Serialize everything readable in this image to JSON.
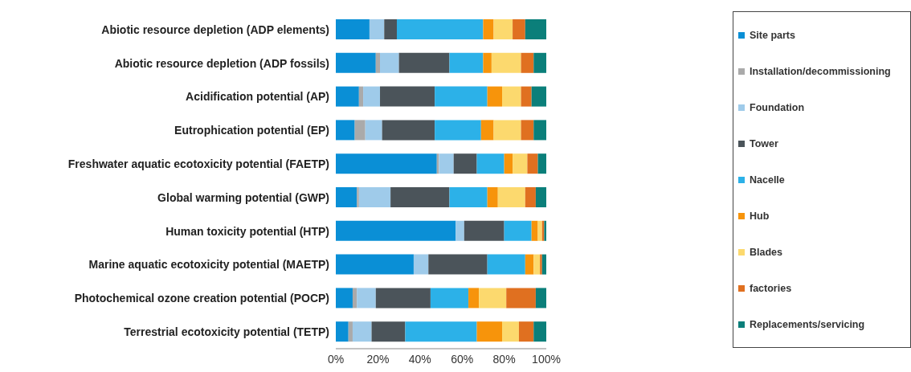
{
  "chart_data": {
    "type": "bar",
    "orientation": "horizontal",
    "stacked": true,
    "legend": "right",
    "grid": false,
    "categories": [
      "Abiotic resource depletion (ADP elements)",
      "Abiotic resource depletion (ADP fossils)",
      "Acidification potential (AP)",
      "Eutrophication potential (EP)",
      "Freshwater aquatic ecotoxicity potential (FAETP)",
      "Global warming potential (GWP)",
      "Human toxicity potential (HTP)",
      "Marine aquatic ecotoxicity potential (MAETP)",
      "Photochemical ozone creation potential (POCP)",
      "Terrestrial ecotoxicity potential (TETP)"
    ],
    "xlim": [
      0,
      100
    ],
    "xticks": [
      {
        "value": 0,
        "label": "0%"
      },
      {
        "value": 20,
        "label": "20%"
      },
      {
        "value": 40,
        "label": "40%"
      },
      {
        "value": 60,
        "label": "60%"
      },
      {
        "value": 80,
        "label": "80%"
      },
      {
        "value": 100,
        "label": "100%"
      }
    ],
    "series": [
      {
        "name": "Site parts",
        "color": "#0a8fd6",
        "values": [
          16,
          19,
          11,
          9,
          48,
          10,
          57,
          37,
          8,
          6
        ]
      },
      {
        "name": "Installation/decommissioning",
        "color": "#aaaaaa",
        "values": [
          0,
          2,
          2,
          5,
          1,
          1,
          0,
          0,
          2,
          2
        ]
      },
      {
        "name": "Foundation",
        "color": "#9fcbea",
        "values": [
          7,
          9,
          8,
          8,
          7,
          15,
          4,
          7,
          9,
          9
        ]
      },
      {
        "name": "Tower",
        "color": "#4b545a",
        "values": [
          6,
          24,
          26,
          25,
          11,
          28,
          19,
          28,
          26,
          16
        ]
      },
      {
        "name": "Nacelle",
        "color": "#2cb1e8",
        "values": [
          41,
          16,
          25,
          22,
          13,
          18,
          13,
          18,
          18,
          34
        ]
      },
      {
        "name": "Hub",
        "color": "#f7940b",
        "values": [
          5,
          4,
          7,
          6,
          4,
          5,
          3,
          4,
          5,
          12
        ]
      },
      {
        "name": "Blades",
        "color": "#fcd96e",
        "values": [
          9,
          14,
          9,
          13,
          7,
          13,
          2,
          3,
          13,
          8
        ]
      },
      {
        "name": "factories",
        "color": "#e07020",
        "values": [
          6,
          6,
          5,
          6,
          5,
          5,
          1,
          1,
          14,
          7
        ]
      },
      {
        "name": "Replacements/servicing",
        "color": "#0b7f7a",
        "values": [
          10,
          6,
          7,
          6,
          4,
          5,
          1,
          2,
          5,
          6
        ]
      }
    ]
  }
}
